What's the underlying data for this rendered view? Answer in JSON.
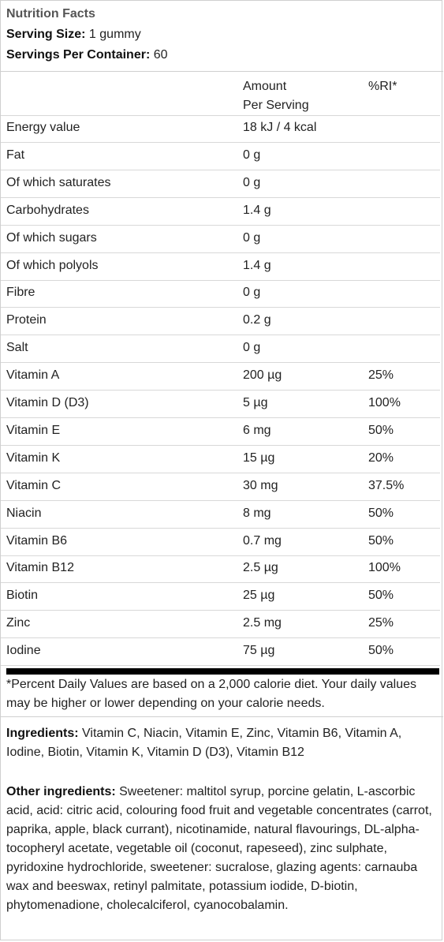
{
  "header": {
    "title": "Nutrition Facts",
    "serving_size_label": "Serving Size:",
    "serving_size_value": " 1 gummy",
    "servings_label": "Servings Per Container:",
    "servings_value": " 60"
  },
  "table": {
    "col_amount_line1": "Amount",
    "col_amount_line2": "Per Serving",
    "col_ri": "%RI*",
    "rows": [
      {
        "name": "Energy value",
        "amount": "18 kJ / 4 kcal",
        "ri": ""
      },
      {
        "name": "Fat",
        "amount": "0 g",
        "ri": ""
      },
      {
        "name": "Of which saturates",
        "amount": "0 g",
        "ri": ""
      },
      {
        "name": "Carbohydrates",
        "amount": "1.4 g",
        "ri": ""
      },
      {
        "name": "Of which sugars",
        "amount": "0 g",
        "ri": ""
      },
      {
        "name": "Of which polyols",
        "amount": "1.4 g",
        "ri": ""
      },
      {
        "name": "Fibre",
        "amount": "0 g",
        "ri": ""
      },
      {
        "name": "Protein",
        "amount": "0.2 g",
        "ri": ""
      },
      {
        "name": "Salt",
        "amount": "0 g",
        "ri": ""
      },
      {
        "name": "Vitamin A",
        "amount": "200 µg",
        "ri": "25%"
      },
      {
        "name": "Vitamin D (D3)",
        "amount": "5 µg",
        "ri": "100%"
      },
      {
        "name": "Vitamin E",
        "amount": "6 mg",
        "ri": "50%"
      },
      {
        "name": "Vitamin K",
        "amount": "15 µg",
        "ri": "20%"
      },
      {
        "name": "Vitamin C",
        "amount": "30 mg",
        "ri": "37.5%"
      },
      {
        "name": "Niacin",
        "amount": "8 mg",
        "ri": "50%"
      },
      {
        "name": "Vitamin B6",
        "amount": "0.7 mg",
        "ri": "50%"
      },
      {
        "name": "Vitamin B12",
        "amount": "2.5 µg",
        "ri": "100%"
      },
      {
        "name": "Biotin",
        "amount": "25 µg",
        "ri": "50%"
      },
      {
        "name": "Zinc",
        "amount": "2.5 mg",
        "ri": "25%"
      },
      {
        "name": "Iodine",
        "amount": "75 µg",
        "ri": "50%"
      }
    ]
  },
  "footnote": "*Percent Daily Values are based on a 2,000 calorie diet. Your daily values may be higher or lower depending on your calorie needs.",
  "ingredients": {
    "label": "Ingredients:",
    "text": " Vitamin C, Niacin, Vitamin E, Zinc, Vitamin B6, Vitamin A, Iodine, Biotin, Vitamin K, Vitamin D (D3), Vitamin B12"
  },
  "other_ingredients": {
    "label": "Other ingredients:",
    "text": " Sweetener: maltitol syrup, porcine gelatin, L-ascorbic acid, acid: citric acid, colouring food fruit and vegetable concentrates (carrot, paprika, apple, black currant), nicotinamide, natural flavourings, DL-alpha-tocopheryl acetate, vegetable oil (coconut, rapeseed), zinc sulphate, pyridoxine hydrochloride, sweetener: sucralose, glazing agents: carnauba wax and beeswax, retinyl palmitate, potassium iodide, D-biotin, phytomenadione, cholecalciferol, cyanocobalamin."
  }
}
